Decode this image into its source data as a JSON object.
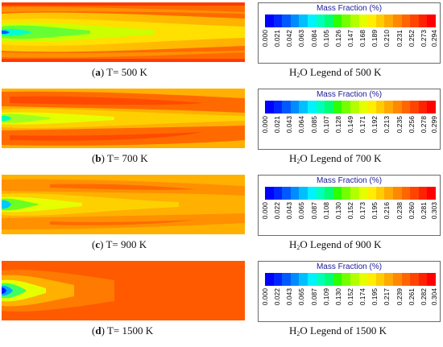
{
  "palette": [
    "#0000ff",
    "#0026ff",
    "#0059ff",
    "#008cff",
    "#00bfff",
    "#00f2ff",
    "#00ffb9",
    "#00ff72",
    "#2bff00",
    "#73ff00",
    "#b3ff00",
    "#e6ff00",
    "#ffee00",
    "#ffcc00",
    "#ffaa00",
    "#ff8800",
    "#ff6600",
    "#ff4400",
    "#ff2200",
    "#ff0000"
  ],
  "legend_title": "Mass Fraction (%)",
  "panels": [
    {
      "letter": "a",
      "condition": "T= 500 K",
      "legend_caption_pre": "H",
      "legend_caption_sub": "2",
      "legend_caption_post": "O Legend of 500 K",
      "ticks": [
        "0.000",
        "0.021",
        "0.042",
        "0.063",
        "0.084",
        "0.105",
        "0.126",
        "0.147",
        "0.168",
        "0.189",
        "0.210",
        "0.231",
        "0.252",
        "0.273",
        "0.294"
      ]
    },
    {
      "letter": "b",
      "condition": "T= 700 K",
      "legend_caption_pre": "H",
      "legend_caption_sub": "2",
      "legend_caption_post": "O Legend of 700 K",
      "ticks": [
        "0.000",
        "0.021",
        "0.043",
        "0.064",
        "0.085",
        "0.107",
        "0.128",
        "0.149",
        "0.171",
        "0.192",
        "0.213",
        "0.235",
        "0.256",
        "0.278",
        "0.299"
      ]
    },
    {
      "letter": "c",
      "condition": "T= 900 K",
      "legend_caption_pre": "H",
      "legend_caption_sub": "2",
      "legend_caption_post": "O Legend of 900 K",
      "ticks": [
        "0.000",
        "0.022",
        "0.043",
        "0.065",
        "0.087",
        "0.108",
        "0.130",
        "0.152",
        "0.173",
        "0.195",
        "0.216",
        "0.238",
        "0.260",
        "0.281",
        "0.303"
      ]
    },
    {
      "letter": "d",
      "condition": "T= 1500 K",
      "legend_caption_pre": "H",
      "legend_caption_sub": "2",
      "legend_caption_post": "O Legend of 1500 K",
      "ticks": [
        "0.000",
        "0.022",
        "0.043",
        "0.065",
        "0.087",
        "0.109",
        "0.130",
        "0.152",
        "0.174",
        "0.195",
        "0.217",
        "0.239",
        "0.261",
        "0.282",
        "0.304"
      ]
    }
  ]
}
